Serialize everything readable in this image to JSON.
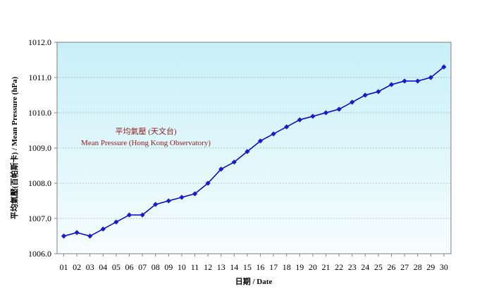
{
  "chart_data": {
    "type": "line",
    "title": "",
    "xlabel": "日期 / Date",
    "ylabel": "平均氣壓(百帕斯卡) / Mean Pressure (hPa)",
    "ylim": [
      1006.0,
      1012.0
    ],
    "yticks": [
      "1006.0",
      "1007.0",
      "1008.0",
      "1009.0",
      "1010.0",
      "1011.0",
      "1012.0"
    ],
    "grid": true,
    "categories": [
      "01",
      "02",
      "03",
      "04",
      "05",
      "06",
      "07",
      "08",
      "09",
      "10",
      "11",
      "12",
      "13",
      "14",
      "15",
      "16",
      "17",
      "18",
      "19",
      "20",
      "21",
      "22",
      "23",
      "24",
      "25",
      "26",
      "27",
      "28",
      "29",
      "30"
    ],
    "series": [
      {
        "name": "平均氣壓 (天文台) Mean Pressure (Hong Kong Observatory)",
        "values": [
          1006.5,
          1006.6,
          1006.5,
          1006.7,
          1006.9,
          1007.1,
          1007.1,
          1007.4,
          1007.5,
          1007.6,
          1007.7,
          1008.0,
          1008.4,
          1008.6,
          1008.9,
          1009.2,
          1009.4,
          1009.6,
          1009.8,
          1009.9,
          1010.0,
          1010.1,
          1010.3,
          1010.5,
          1010.6,
          1010.8,
          1010.9,
          1010.9,
          1011.0,
          1011.3
        ]
      }
    ],
    "annotations": {
      "label_zh": "平均氣壓 (天文台)",
      "label_en": "Mean Pressure (Hong Kong Observatory)"
    },
    "colors": {
      "plot_bg_top": "#c8f0f8",
      "plot_bg_bottom": "#f6fdfe",
      "line": "#0000cc",
      "marker": "#1a1acc",
      "grid": "#9fb4bb",
      "annotation": "#8b1a1a"
    }
  }
}
